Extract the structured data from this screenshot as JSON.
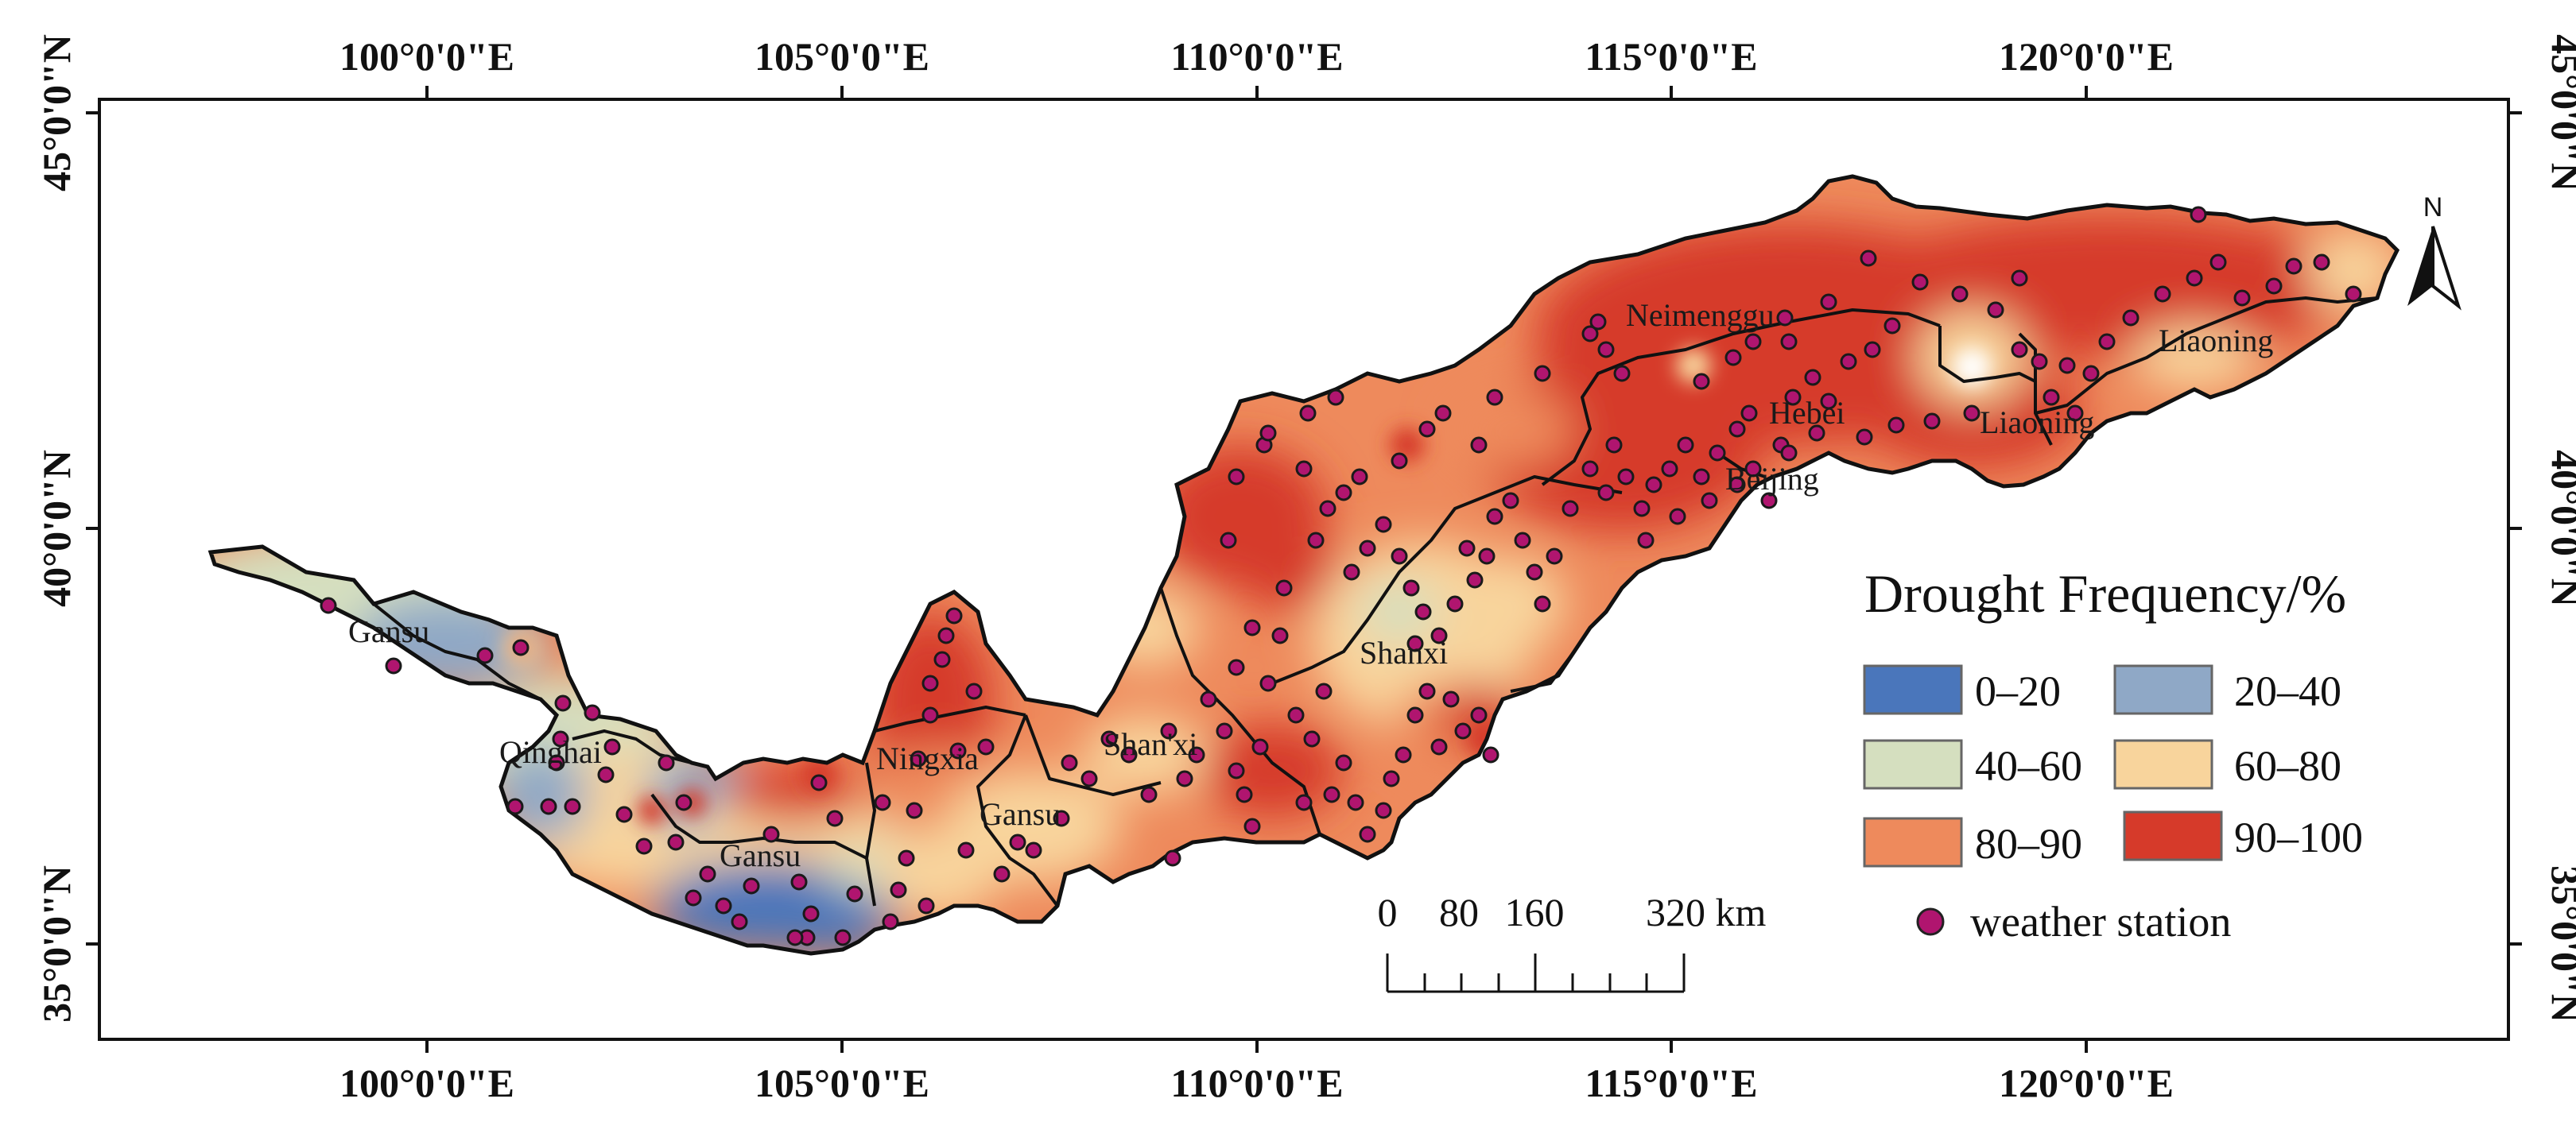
{
  "map": {
    "longitude_ticks": [
      "100°0'0\"E",
      "105°0'0\"E",
      "110°0'0\"E",
      "115°0'0\"E",
      "120°0'0\"E"
    ],
    "latitude_ticks": [
      "45°0'0\"N",
      "40°0'0\"N",
      "35°0'0\"N"
    ],
    "province_labels": [
      "Neimenggu",
      "Liaoning",
      "Hebei",
      "Liaoning",
      "Beijing",
      "Shanxi",
      "Shan'xi",
      "Ningxia",
      "Gansu",
      "Gansu",
      "Qinghai",
      "Gansu"
    ]
  },
  "legend": {
    "title": "Drought Frequency/%",
    "classes": [
      {
        "label": "0–20",
        "color": "#4a76bb"
      },
      {
        "label": "20–40",
        "color": "#8fa8c6"
      },
      {
        "label": "40–60",
        "color": "#d5dfbf"
      },
      {
        "label": "60–80",
        "color": "#f8d49c"
      },
      {
        "label": "80–90",
        "color": "#ee8a5c"
      },
      {
        "label": "90–100",
        "color": "#d63a2a"
      }
    ],
    "station_label": "weather station",
    "station_color": "#b0156f"
  },
  "scale_bar": {
    "labels": [
      "0",
      "80",
      "160",
      "320 km"
    ]
  },
  "north_arrow": {
    "label": "N"
  }
}
